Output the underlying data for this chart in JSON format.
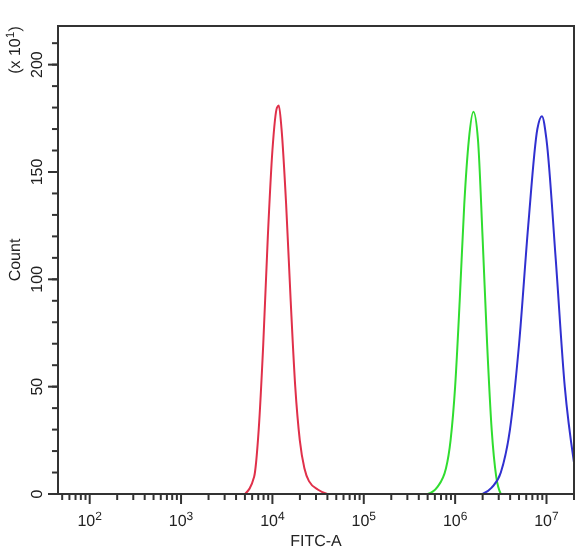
{
  "chart_data": {
    "type": "line",
    "xlabel": "FITC-A",
    "ylabel": "Count",
    "annotations": [
      "(x 10$^{1}$)"
    ],
    "log": "x",
    "grid": false,
    "marker": "none",
    "line_style": "solid",
    "xlim": [
      45,
      20000000
    ],
    "ylim": [
      0,
      218
    ],
    "xticks": [
      {
        "value": 100,
        "label": "10$^{2}$"
      },
      {
        "value": 1000,
        "label": "10$^{3}$"
      },
      {
        "value": 10000,
        "label": "10$^{4}$"
      },
      {
        "value": 100000,
        "label": "10$^{5}$"
      },
      {
        "value": 1000000,
        "label": "10$^{6}$"
      },
      {
        "value": 10000000,
        "label": "10$^{7}$"
      }
    ],
    "yticks": [
      0,
      50,
      100,
      150,
      200
    ],
    "series": [
      {
        "color": "#e0304a",
        "x": [
          5012,
          6310,
          7079,
          7943,
          8913,
          10000,
          11220,
          11750,
          12590,
          14130,
          15850,
          17780,
          19950,
          22390,
          25120,
          31620,
          39810
        ],
        "values": [
          0,
          8,
          30,
          70,
          120,
          160,
          180,
          181,
          170,
          135,
          90,
          50,
          25,
          12,
          6,
          2,
          0
        ]
      },
      {
        "color": "#30dd30",
        "x": [
          501200,
          631000,
          794300,
          891300,
          1000000,
          1122000,
          1259000,
          1413000,
          1585000,
          1778000,
          1995000,
          2239000,
          2512000,
          2818000,
          3162000
        ],
        "values": [
          0,
          3,
          12,
          25,
          50,
          90,
          135,
          165,
          178,
          165,
          120,
          70,
          30,
          8,
          0
        ]
      },
      {
        "color": "#3030d0",
        "x": [
          1995000,
          2512000,
          3162000,
          3981000,
          5012000,
          6310000,
          7943000,
          8913000,
          10000000,
          12590000,
          15850000,
          19950000
        ],
        "values": [
          0,
          3,
          10,
          30,
          70,
          125,
          170,
          176,
          165,
          110,
          50,
          15
        ]
      }
    ]
  }
}
